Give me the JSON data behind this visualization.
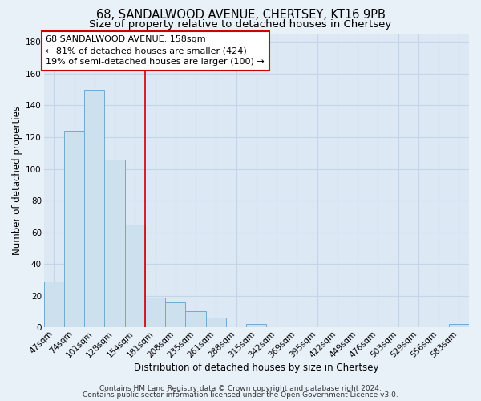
{
  "title_main": "68, SANDALWOOD AVENUE, CHERTSEY, KT16 9PB",
  "title_sub": "Size of property relative to detached houses in Chertsey",
  "xlabel": "Distribution of detached houses by size in Chertsey",
  "ylabel": "Number of detached properties",
  "bar_labels": [
    "47sqm",
    "74sqm",
    "101sqm",
    "128sqm",
    "154sqm",
    "181sqm",
    "208sqm",
    "235sqm",
    "261sqm",
    "288sqm",
    "315sqm",
    "342sqm",
    "369sqm",
    "395sqm",
    "422sqm",
    "449sqm",
    "476sqm",
    "503sqm",
    "529sqm",
    "556sqm",
    "583sqm"
  ],
  "bar_values": [
    29,
    124,
    150,
    106,
    65,
    19,
    16,
    10,
    6,
    0,
    2,
    0,
    0,
    0,
    0,
    0,
    0,
    0,
    0,
    0,
    2
  ],
  "bar_color": "#cde0ee",
  "bar_edge_color": "#6faacf",
  "ylim": [
    0,
    185
  ],
  "yticks": [
    0,
    20,
    40,
    60,
    80,
    100,
    120,
    140,
    160,
    180
  ],
  "red_line_x": 4.5,
  "annotation_line1": "68 SANDALWOOD AVENUE: 158sqm",
  "annotation_line2": "← 81% of detached houses are smaller (424)",
  "annotation_line3": "19% of semi-detached houses are larger (100) →",
  "footer_line1": "Contains HM Land Registry data © Crown copyright and database right 2024.",
  "footer_line2": "Contains public sector information licensed under the Open Government Licence v3.0.",
  "bg_color": "#e8f0f8",
  "plot_bg_color": "#dce8f4",
  "grid_color": "#c5d5e8",
  "title_fontsize": 10.5,
  "subtitle_fontsize": 9.5,
  "axis_label_fontsize": 8.5,
  "tick_fontsize": 7.5,
  "annotation_fontsize": 8,
  "footer_fontsize": 6.5
}
